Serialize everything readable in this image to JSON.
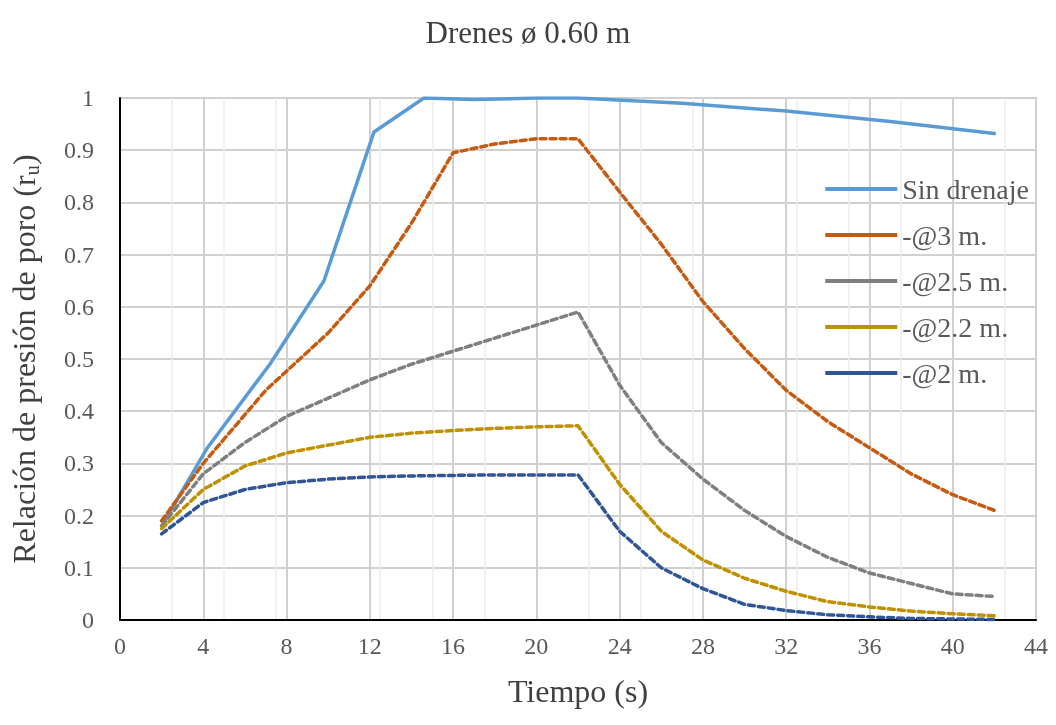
{
  "chart_data": {
    "type": "line",
    "title": "Drenes ø 0.60 m",
    "xlabel": "Tiempo (s)",
    "ylabel": "Relación de presión de poro (r$_{u}$)",
    "xlim": [
      0,
      44
    ],
    "xticks": [
      0,
      4,
      8,
      12,
      16,
      20,
      24,
      28,
      32,
      36,
      40,
      44
    ],
    "ylim": [
      0,
      1
    ],
    "yticks": [
      0,
      0.1,
      0.2,
      0.3,
      0.4,
      0.5,
      0.6,
      0.7,
      0.8,
      0.9,
      1
    ],
    "grid": true,
    "legend": "right",
    "marker": "none",
    "series": [
      {
        "name": "Sin drenaje",
        "color": "#5b9bd5",
        "line_style": "solid",
        "x": [
          2,
          4.2,
          7.2,
          9.8,
          12.2,
          14.6,
          17,
          20,
          22,
          27,
          32,
          37,
          42
        ],
        "values": [
          0.18,
          0.33,
          0.49,
          0.65,
          0.935,
          1.0,
          0.997,
          1.0,
          1.0,
          0.99,
          0.975,
          0.955,
          0.932
        ]
      },
      {
        "name": "-@3 m.",
        "color": "#c55a11",
        "line_style": "dashed",
        "x": [
          2,
          4,
          7,
          10,
          12,
          14,
          16,
          18,
          20,
          22,
          24,
          26,
          28,
          30,
          32,
          34,
          36,
          38,
          40,
          42
        ],
        "values": [
          0.19,
          0.3,
          0.44,
          0.55,
          0.64,
          0.76,
          0.895,
          0.912,
          0.922,
          0.922,
          0.82,
          0.72,
          0.61,
          0.52,
          0.44,
          0.38,
          0.33,
          0.28,
          0.24,
          0.21
        ]
      },
      {
        "name": "-@2.5 m.",
        "color": "#7f7f7f",
        "line_style": "dashed",
        "x": [
          2,
          4,
          6,
          8,
          10,
          12,
          14,
          16,
          18,
          20,
          22,
          24,
          26,
          28,
          30,
          32,
          34,
          36,
          38,
          40,
          42
        ],
        "values": [
          0.18,
          0.28,
          0.34,
          0.39,
          0.425,
          0.46,
          0.49,
          0.515,
          0.54,
          0.565,
          0.59,
          0.45,
          0.34,
          0.27,
          0.21,
          0.16,
          0.12,
          0.09,
          0.07,
          0.05,
          0.045
        ]
      },
      {
        "name": "-@2.2 m.",
        "color": "#bf9000",
        "line_style": "dashed",
        "x": [
          2,
          4,
          6,
          8,
          10,
          12,
          14,
          16,
          18,
          20,
          22,
          24,
          26,
          28,
          30,
          32,
          34,
          36,
          38,
          40,
          42
        ],
        "values": [
          0.175,
          0.25,
          0.295,
          0.32,
          0.335,
          0.35,
          0.358,
          0.363,
          0.367,
          0.37,
          0.372,
          0.26,
          0.17,
          0.115,
          0.08,
          0.055,
          0.035,
          0.025,
          0.017,
          0.012,
          0.008
        ]
      },
      {
        "name": "-@2 m.",
        "color": "#2f5597",
        "line_style": "dashed",
        "x": [
          2,
          4,
          6,
          8,
          10,
          12,
          14,
          16,
          18,
          20,
          22,
          24,
          26,
          28,
          30,
          32,
          34,
          36,
          38,
          40,
          42
        ],
        "values": [
          0.165,
          0.225,
          0.25,
          0.263,
          0.27,
          0.274,
          0.276,
          0.277,
          0.278,
          0.278,
          0.278,
          0.17,
          0.1,
          0.06,
          0.03,
          0.018,
          0.01,
          0.006,
          0.003,
          0.002,
          0.001
        ]
      }
    ]
  }
}
